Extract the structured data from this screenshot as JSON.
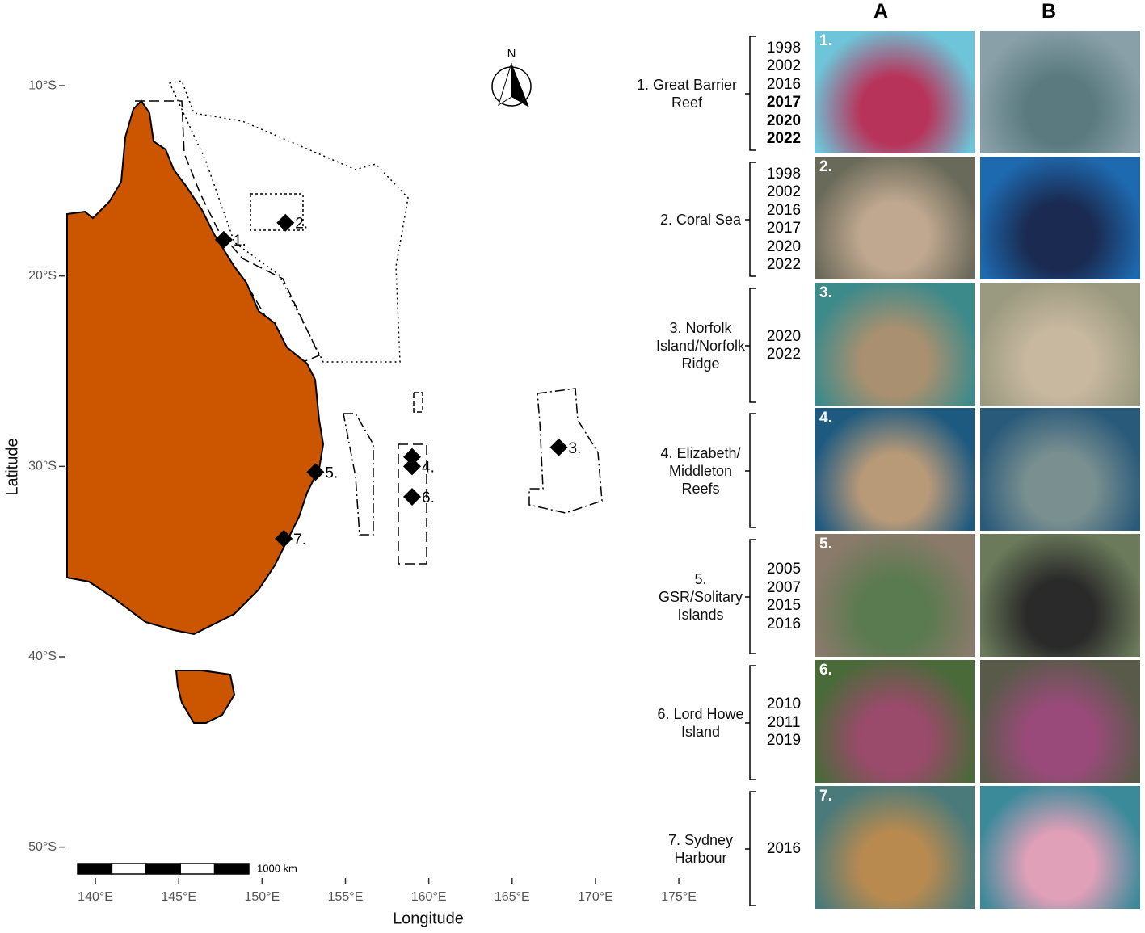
{
  "map": {
    "xlabel": "Longitude",
    "ylabel": "Latitude",
    "xlim": [
      138.3,
      176
    ],
    "ylim": [
      -51.5,
      -5.5
    ],
    "xticks": [
      {
        "value": 140,
        "label": "140°E"
      },
      {
        "value": 145,
        "label": "145°E"
      },
      {
        "value": 150,
        "label": "150°E"
      },
      {
        "value": 155,
        "label": "155°E"
      },
      {
        "value": 160,
        "label": "160°E"
      },
      {
        "value": 165,
        "label": "165°E"
      },
      {
        "value": 170,
        "label": "170°E"
      },
      {
        "value": 175,
        "label": "175°E"
      }
    ],
    "yticks": [
      {
        "value": -10,
        "label": "10°S"
      },
      {
        "value": -20,
        "label": "20°S"
      },
      {
        "value": -30,
        "label": "30°S"
      },
      {
        "value": -40,
        "label": "40°S"
      },
      {
        "value": -50,
        "label": "50°S"
      }
    ],
    "sites": [
      {
        "label": "1.",
        "points": [
          {
            "lon": 147.7,
            "lat": -18.1
          }
        ]
      },
      {
        "label": "2.",
        "points": [
          {
            "lon": 151.4,
            "lat": -17.2
          }
        ]
      },
      {
        "label": "3.",
        "points": [
          {
            "lon": 167.8,
            "lat": -29.0
          }
        ]
      },
      {
        "label": "4.",
        "points": [
          {
            "lon": 159.0,
            "lat": -29.5
          },
          {
            "lon": 159.0,
            "lat": -30.0
          }
        ]
      },
      {
        "label": "5.",
        "points": [
          {
            "lon": 153.2,
            "lat": -30.3
          }
        ]
      },
      {
        "label": "6.",
        "points": [
          {
            "lon": 159.0,
            "lat": -31.6
          }
        ]
      },
      {
        "label": "7.",
        "points": [
          {
            "lon": 151.3,
            "lat": -33.8
          }
        ]
      }
    ],
    "scale_bar": "1000 km",
    "north": "N"
  },
  "panel": {
    "columns": [
      "A",
      "B"
    ],
    "rows": [
      {
        "site": "1. Great Barrier Reef",
        "years": [
          "1998",
          "2002",
          "2016",
          "2017",
          "2020",
          "2022"
        ],
        "years_bold": [
          false,
          false,
          false,
          true,
          true,
          true
        ],
        "photo_label": "1."
      },
      {
        "site": "2. Coral Sea",
        "years": [
          "1998",
          "2002",
          "2016",
          "2017",
          "2020",
          "2022"
        ],
        "years_bold": [
          false,
          false,
          false,
          false,
          false,
          false
        ],
        "photo_label": "2."
      },
      {
        "site": "3. Norfolk Island/Norfolk Ridge",
        "years": [
          "2020",
          "2022"
        ],
        "years_bold": [
          false,
          false
        ],
        "photo_label": "3."
      },
      {
        "site": "4. Elizabeth/ Middleton Reefs",
        "years": [],
        "years_bold": [],
        "photo_label": "4."
      },
      {
        "site": "5. GSR/Solitary Islands",
        "years": [
          "2005",
          "2007",
          "2015",
          "2016"
        ],
        "years_bold": [
          false,
          false,
          false,
          false
        ],
        "photo_label": "5."
      },
      {
        "site": "6. Lord Howe Island",
        "years": [
          "2010",
          "2011",
          "2019"
        ],
        "years_bold": [
          false,
          false,
          false
        ],
        "photo_label": "6."
      },
      {
        "site": "7. Sydney Harbour",
        "years": [
          "2016"
        ],
        "years_bold": [
          false
        ],
        "photo_label": "7."
      }
    ]
  }
}
